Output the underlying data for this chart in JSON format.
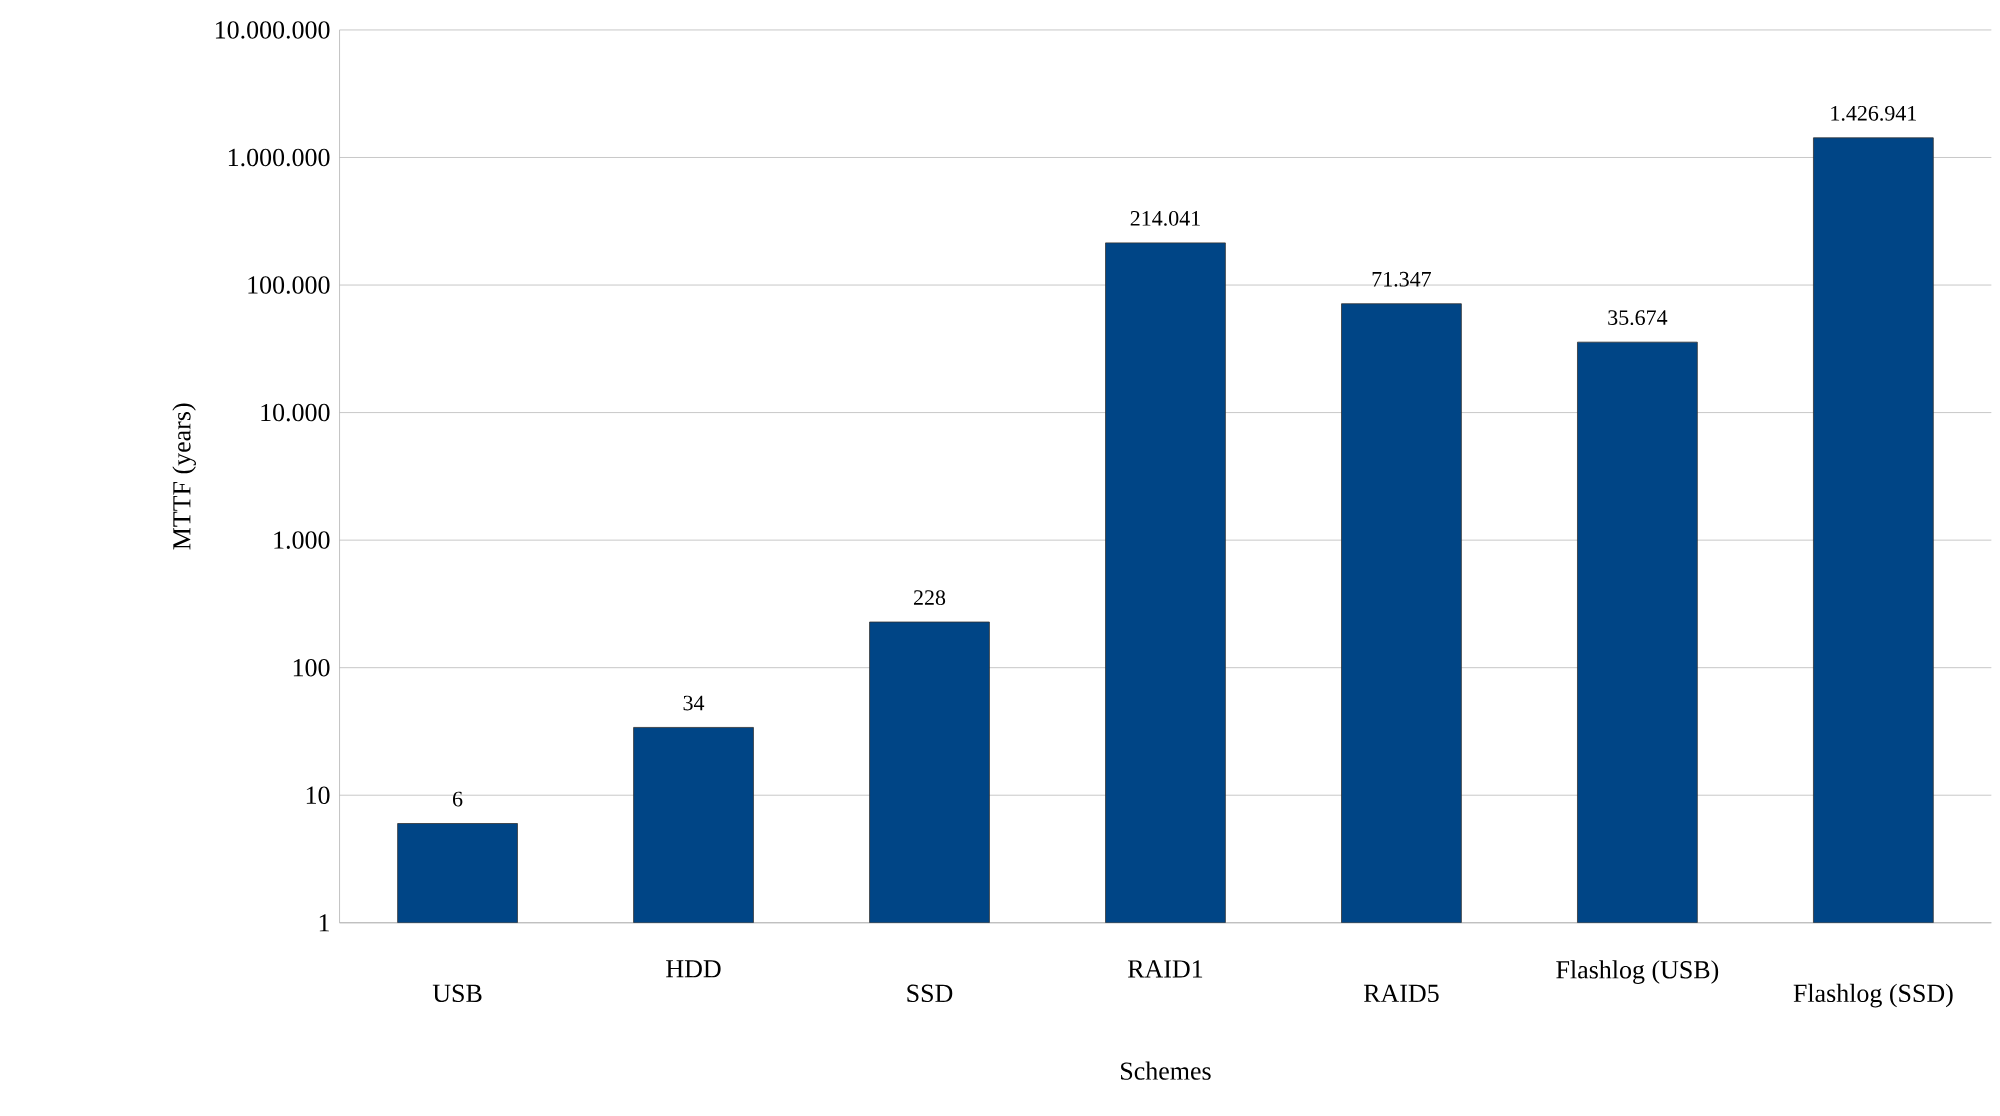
{
  "chart_data": {
    "type": "bar",
    "xlabel": "Schemes",
    "ylabel": "MTTF (years)",
    "categories": [
      "USB",
      "HDD",
      "SSD",
      "RAID1",
      "RAID5",
      "Flashlog (USB)",
      "Flashlog (SSD)"
    ],
    "values": [
      6,
      34,
      228,
      214041,
      71347,
      35674,
      1426941
    ],
    "value_labels": [
      "6",
      "34",
      "228",
      "214.041",
      "71.347",
      "35.674",
      "1.426.941"
    ],
    "color": "#004586",
    "log": "y",
    "ylim": [
      1,
      10000000
    ],
    "yticks": [
      1,
      10,
      100,
      {
        "value": 1000,
        "label": "1.000"
      },
      {
        "value": 10000,
        "label": "10.000"
      },
      {
        "value": 100000,
        "label": "100.000"
      },
      {
        "value": 1000000,
        "label": "1.000.000"
      },
      {
        "value": 10000000,
        "label": "10.000.000"
      }
    ],
    "grid": "y"
  }
}
